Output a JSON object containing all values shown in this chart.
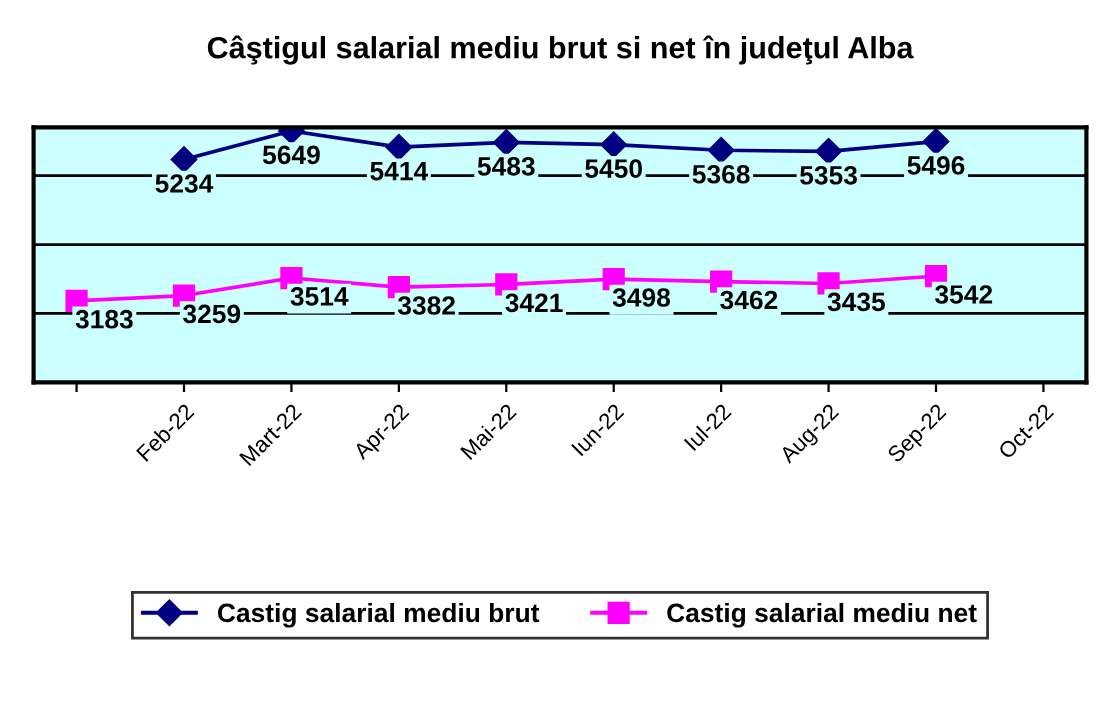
{
  "chart_data": {
    "type": "line",
    "title": "Câştigul salarial mediu brut si net în judeţul Alba",
    "categories": [
      null,
      "Feb-22",
      "Mart-22",
      "Apr-22",
      "Mai-22",
      "Iun-22",
      "Iul-22",
      "Aug-22",
      "Sep-22",
      "Oct-22"
    ],
    "series": [
      {
        "name": "Castig salarial mediu brut",
        "color": "#000080",
        "marker": "diamond",
        "values": [
          null,
          5234,
          5649,
          5414,
          5483,
          5450,
          5368,
          5353,
          5496,
          null
        ]
      },
      {
        "name": "Castig salarial mediu net",
        "color": "#ff00ff",
        "marker": "square",
        "values": [
          3183,
          3259,
          3514,
          3382,
          3421,
          3498,
          3462,
          3435,
          3542,
          null
        ]
      }
    ],
    "ylim": [
      2000,
      5700
    ],
    "yticks": [
      {
        "value": 3000,
        "label": null
      },
      {
        "value": 4000,
        "label": null
      },
      {
        "value": 5000,
        "label": null
      }
    ],
    "tick_labels": "x",
    "grid": "y",
    "legend": "bottom",
    "data_labels": true
  }
}
